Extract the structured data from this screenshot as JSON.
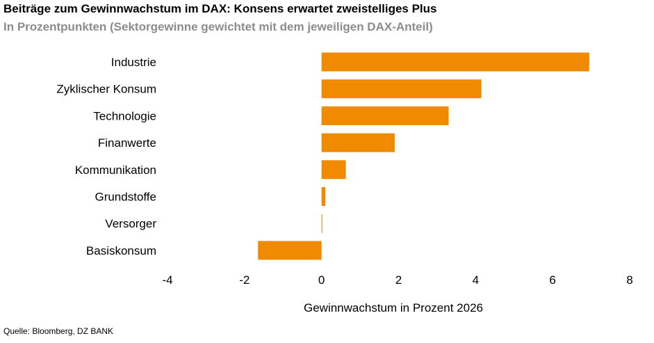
{
  "header": {
    "title": "Beiträge zum Gewinnwachstum im DAX: Konsens erwartet zweistelliges Plus",
    "subtitle": "In Prozentpunkten (Sektorgewinne gewichtet mit dem jeweiligen DAX-Anteil)"
  },
  "footer": {
    "source": "Quelle: Bloomberg, DZ BANK"
  },
  "chart_data": {
    "type": "bar",
    "orientation": "horizontal",
    "title": "Beiträge zum Gewinnwachstum im DAX: Konsens erwartet zweistelliges Plus",
    "subtitle": "In Prozentpunkten (Sektorgewinne gewichtet mit dem jeweiligen DAX-Anteil)",
    "xlabel": "Gewinnwachstum in Prozent 2026",
    "ylabel": "",
    "categories": [
      "Industrie",
      "Zyklischer Konsum",
      "Technologie",
      "Finanwerte",
      "Kommunikation",
      "Grundstoffe",
      "Versorger",
      "Basiskonsum"
    ],
    "values": [
      6.95,
      4.15,
      3.3,
      1.9,
      0.63,
      0.1,
      0.02,
      -1.65
    ],
    "xlim": [
      -4,
      8
    ],
    "xticks": [
      "-4",
      "-2",
      "0",
      "2",
      "4",
      "6",
      "8"
    ],
    "bar_color": "#f08a00",
    "grid": false,
    "legend": "none"
  }
}
